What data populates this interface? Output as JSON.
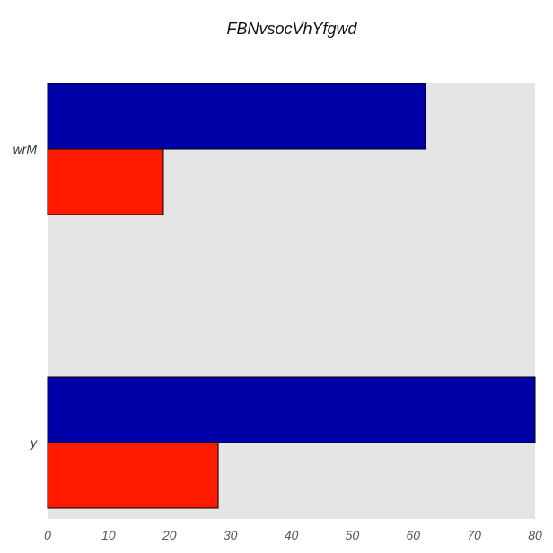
{
  "chart_data": {
    "type": "bar",
    "orientation": "horizontal",
    "title": "FBNvsocVhYfgwd",
    "xlabel": "",
    "ylabel": "",
    "categories": [
      "wrM",
      "y"
    ],
    "series": [
      {
        "values": [
          62,
          80
        ],
        "color": "#0000a8"
      },
      {
        "values": [
          19,
          28
        ],
        "color": "#ff1a00"
      }
    ],
    "xlim": [
      0,
      80
    ],
    "xticks": [
      0,
      10,
      20,
      30,
      40,
      50,
      60,
      70,
      80
    ],
    "grid": false,
    "background": "#e5e5e5",
    "legend": "none"
  }
}
